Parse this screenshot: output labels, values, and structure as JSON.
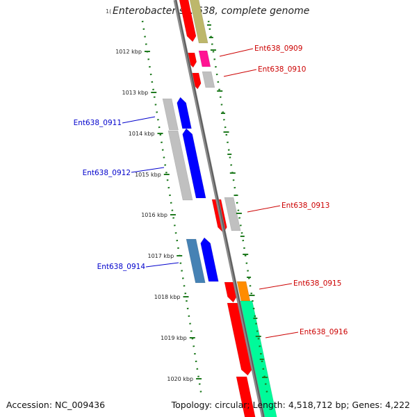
{
  "title_fragment": "1(",
  "title": "Enterobacter sp. 638, complete genome",
  "accession": "Accession: NC_009436",
  "topology": "Topology: circular; Length: 4,518,712 bp; Genes: 4,222",
  "ticks": [
    "1012 kbp",
    "1013 kbp",
    "1014 kbp",
    "1015 kbp",
    "1016 kbp",
    "1017 kbp",
    "1018 kbp",
    "1019 kbp",
    "1020 kbp"
  ],
  "genes": [
    {
      "label": "Ent638_0909",
      "color": "#cc0000"
    },
    {
      "label": "Ent638_0910",
      "color": "#cc0000"
    },
    {
      "label": "Ent638_0911",
      "color": "#0000cc"
    },
    {
      "label": "Ent638_0912",
      "color": "#0000cc"
    },
    {
      "label": "Ent638_0913",
      "color": "#cc0000"
    },
    {
      "label": "Ent638_0914",
      "color": "#0000cc"
    },
    {
      "label": "Ent638_0915",
      "color": "#cc0000"
    },
    {
      "label": "Ent638_0916",
      "color": "#cc0000"
    }
  ],
  "colors": {
    "backbone": "#8a8a8a",
    "tick": "#1f7a1f",
    "red": "#ff0000",
    "blue": "#0000ff",
    "grey": "#c0c0c0",
    "olive": "#bdb76b",
    "magenta": "#ff1493",
    "orange": "#ff8c00",
    "teal": "#00fa9a",
    "steelblue": "#4682b4"
  }
}
